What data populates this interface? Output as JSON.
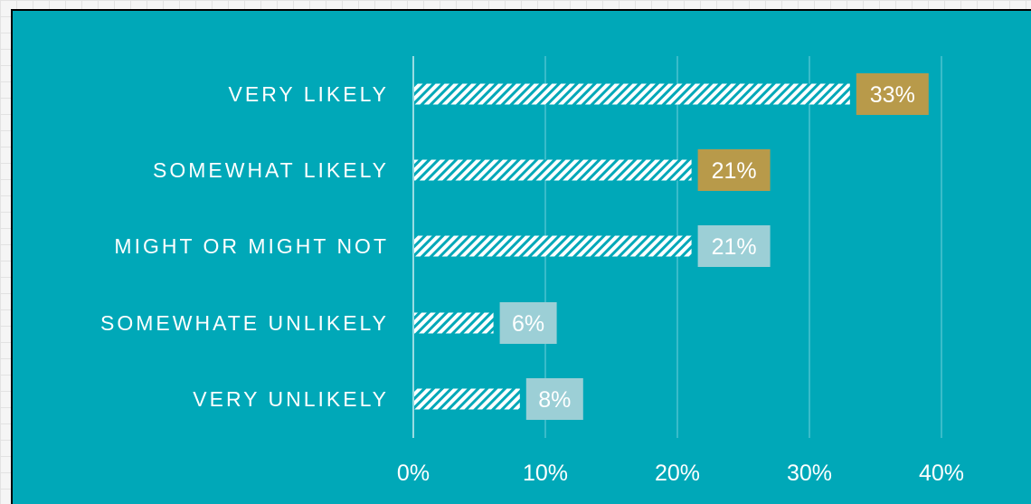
{
  "chart_data": {
    "type": "bar",
    "orientation": "horizontal",
    "categories": [
      "VERY LIKELY",
      "SOMEWHAT LIKELY",
      "MIGHT OR MIGHT NOT",
      "SOMEWHATE UNLIKELY",
      "VERY UNLIKELY"
    ],
    "values": [
      33,
      21,
      21,
      6,
      8
    ],
    "data_labels": [
      "33%",
      "21%",
      "21%",
      "6%",
      "8%"
    ],
    "x_ticks": [
      "0%",
      "10%",
      "20%",
      "30%",
      "40%"
    ],
    "xlim": [
      0,
      40
    ],
    "grid": "vertical",
    "bar_pattern": "diagonal-hatch",
    "colors": {
      "background": "#00a8b8",
      "bar": "#ffffff",
      "highlight_label": "#b89a4a",
      "normal_label": "#9ccfd6",
      "grid": "#4cc3cf"
    },
    "highlighted": [
      true,
      true,
      false,
      false,
      false
    ]
  }
}
